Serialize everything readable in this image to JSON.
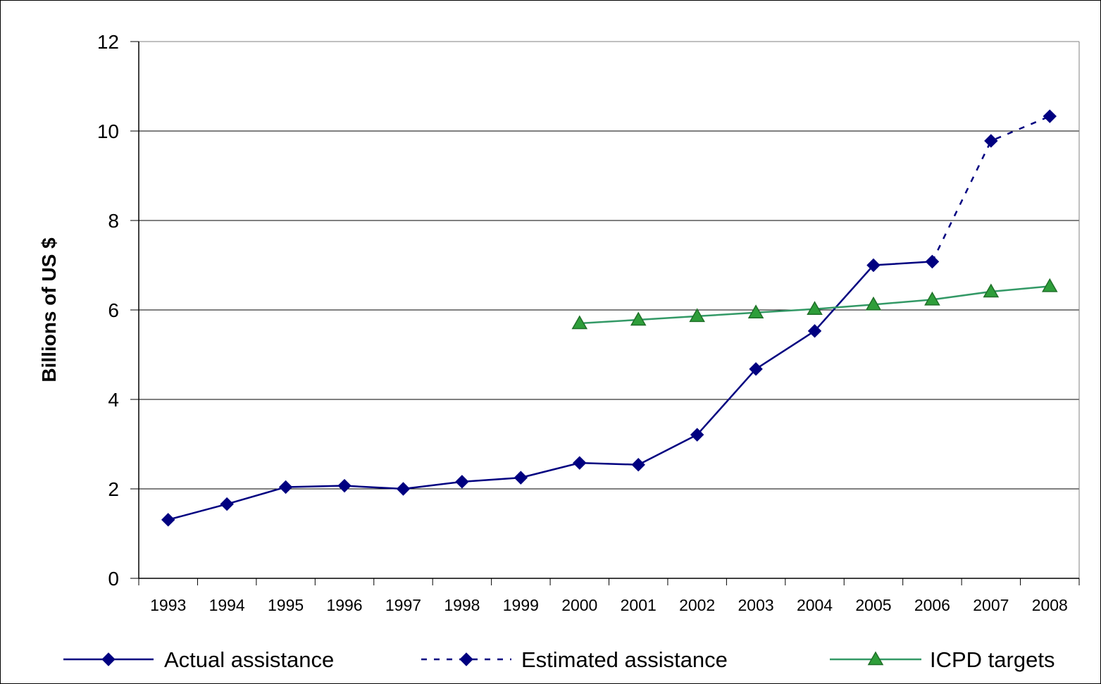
{
  "chart_data": {
    "type": "line",
    "ylabel": "Billions of US $",
    "xlabel": "",
    "title": "",
    "ylim": [
      0,
      12
    ],
    "yticks": [
      "0",
      "2",
      "4",
      "6",
      "8",
      "10",
      "12"
    ],
    "categories": [
      "1993",
      "1994",
      "1995",
      "1996",
      "1997",
      "1998",
      "1999",
      "2000",
      "2001",
      "2002",
      "2003",
      "2004",
      "2005",
      "2006",
      "2007",
      "2008"
    ],
    "grid": true,
    "legend_position": "bottom",
    "series": [
      {
        "name": "Actual assistance",
        "color": "#000080",
        "marker": "diamond",
        "dash": "solid",
        "values": [
          1.31,
          1.66,
          2.04,
          2.07,
          2.0,
          2.16,
          2.25,
          2.58,
          2.54,
          3.21,
          4.68,
          5.53,
          7.0,
          7.08,
          null,
          null
        ]
      },
      {
        "name": "Estimated assistance",
        "color": "#000080",
        "marker": "diamond",
        "dash": "dashed",
        "values": [
          null,
          null,
          null,
          null,
          null,
          null,
          null,
          null,
          null,
          null,
          null,
          null,
          null,
          7.08,
          9.78,
          10.33
        ]
      },
      {
        "name": "ICPD targets",
        "color": "#339966",
        "marker": "triangle",
        "dash": "solid",
        "values": [
          null,
          null,
          null,
          null,
          null,
          null,
          null,
          5.7,
          5.78,
          5.86,
          5.94,
          6.02,
          6.12,
          6.23,
          6.41,
          6.53
        ]
      }
    ]
  }
}
